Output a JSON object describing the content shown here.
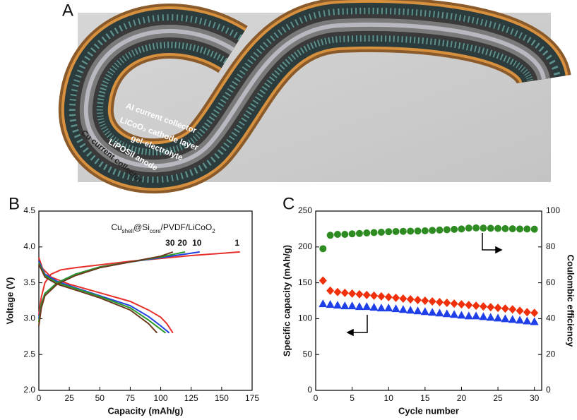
{
  "panel_a": {
    "label": "A",
    "annotations": [
      "Al current collector",
      "LiCoO₂ cathode layer",
      "gel-electrolyte",
      "LiPOSiI anode",
      "Cu current collector"
    ]
  },
  "chart_data": [
    {
      "type": "line",
      "panel_label": "B",
      "annotation": [
        {
          "text": "Cu"
        },
        {
          "text": "shell",
          "sub": true
        },
        {
          "text": "@Si"
        },
        {
          "text": "core",
          "sub": true
        },
        {
          "text": "/PVDF/LiCoO"
        },
        {
          "text": "2",
          "sub": true
        }
      ],
      "x_label": "Capacity (mAh/g)",
      "y_label": "Voltage (V)",
      "xlim": [
        0,
        175
      ],
      "xticks": [
        0,
        25,
        50,
        75,
        100,
        125,
        150,
        175
      ],
      "ylim": [
        2,
        4.5
      ],
      "yticks": [
        {
          "value": 2,
          "label": "2.0"
        },
        2.5,
        {
          "value": 3,
          "label": "3.0"
        },
        3.5,
        {
          "value": 4,
          "label": "4.0"
        },
        4.5
      ],
      "series": [
        {
          "name": "1",
          "color": "#e8302a",
          "x": [
            0,
            2,
            5,
            10,
            18,
            30,
            50,
            75,
            100,
            125,
            150,
            165,
            null,
            0,
            3,
            10,
            25,
            50,
            75,
            90,
            100,
            105,
            110
          ],
          "values": [
            3.05,
            3.3,
            3.5,
            3.62,
            3.68,
            3.71,
            3.75,
            3.8,
            3.84,
            3.88,
            3.91,
            3.93,
            null,
            3.85,
            3.7,
            3.58,
            3.48,
            3.36,
            3.24,
            3.12,
            3.02,
            2.93,
            2.8
          ]
        },
        {
          "name": "10",
          "color": "#2040e0",
          "x": [
            0,
            2,
            5,
            15,
            30,
            50,
            75,
            100,
            120,
            132,
            null,
            0,
            5,
            15,
            30,
            50,
            75,
            90,
            100,
            107
          ],
          "values": [
            3.0,
            3.2,
            3.35,
            3.5,
            3.62,
            3.72,
            3.79,
            3.85,
            3.9,
            3.93,
            null,
            3.8,
            3.62,
            3.52,
            3.43,
            3.32,
            3.18,
            3.03,
            2.9,
            2.8
          ]
        },
        {
          "name": "20",
          "color": "#2a9a2a",
          "x": [
            0,
            2,
            5,
            15,
            30,
            50,
            75,
            100,
            120,
            null,
            0,
            5,
            15,
            30,
            50,
            75,
            90,
            104
          ],
          "values": [
            2.95,
            3.2,
            3.35,
            3.5,
            3.62,
            3.72,
            3.79,
            3.86,
            3.93,
            null,
            3.78,
            3.6,
            3.5,
            3.42,
            3.31,
            3.15,
            2.98,
            2.8
          ]
        },
        {
          "name": "30",
          "color": "#6b3a1f",
          "x": [
            0,
            2,
            5,
            15,
            30,
            50,
            75,
            100,
            110,
            null,
            0,
            5,
            15,
            30,
            50,
            75,
            90,
            97
          ],
          "values": [
            2.9,
            3.15,
            3.32,
            3.48,
            3.6,
            3.71,
            3.79,
            3.87,
            3.93,
            null,
            3.76,
            3.58,
            3.48,
            3.4,
            3.29,
            3.12,
            2.93,
            2.8
          ]
        }
      ]
    },
    {
      "type": "scatter",
      "panel_label": "C",
      "x_label": "Cycle number",
      "y_label": "Specific capacity (mAh/g)",
      "y2_label": "Coulombic efficiency",
      "xlim": [
        0,
        31
      ],
      "xticks": [
        0,
        5,
        10,
        15,
        20,
        25,
        30
      ],
      "ylim": [
        0,
        250
      ],
      "yticks": [
        0,
        50,
        100,
        150,
        200,
        250
      ],
      "y2lim": [
        0,
        100
      ],
      "y2ticks": [
        0,
        20,
        40,
        60,
        80,
        100
      ],
      "x": [
        1,
        2,
        3,
        4,
        5,
        6,
        7,
        8,
        9,
        10,
        11,
        12,
        13,
        14,
        15,
        16,
        17,
        18,
        19,
        20,
        21,
        22,
        23,
        24,
        25,
        26,
        27,
        28,
        29,
        30
      ],
      "series": [
        {
          "color": "#f0300a",
          "marker": "diamond",
          "values": [
            153,
            139,
            137,
            136,
            135,
            134,
            133,
            132,
            131,
            130,
            129,
            128,
            127,
            126,
            125,
            124,
            123,
            122,
            121,
            120,
            119,
            118,
            117,
            116,
            115,
            114,
            113,
            111,
            109,
            108
          ]
        },
        {
          "color": "#1f3fe8",
          "marker": "triangle",
          "values": [
            121,
            120,
            119,
            118,
            118,
            117,
            117,
            116,
            115,
            115,
            114,
            113,
            112,
            111,
            110,
            109,
            108,
            107,
            106,
            105,
            104,
            104,
            103,
            102,
            101,
            100,
            99,
            98,
            97,
            96
          ]
        },
        {
          "color": "#2e8b22",
          "marker": "circle",
          "axis": "y2",
          "values": [
            79,
            86.5,
            87,
            87,
            87.3,
            87.5,
            87.8,
            88,
            88.2,
            88.5,
            88.6,
            88.7,
            88.8,
            88.9,
            89,
            89.2,
            89.4,
            89.6,
            89.8,
            90,
            90.5,
            90.6,
            90.5,
            90.4,
            90.3,
            90.2,
            90.1,
            90,
            90,
            89.9
          ]
        }
      ]
    }
  ]
}
